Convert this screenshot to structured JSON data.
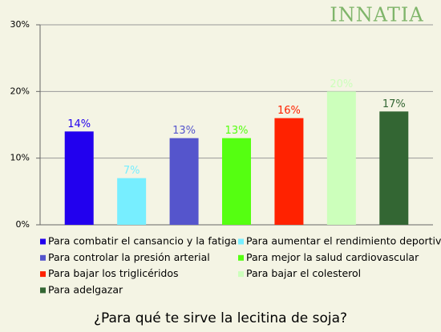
{
  "logo": "INNATIA",
  "chart_data": {
    "type": "bar",
    "title": "¿Para qué te sirve la lecitina de soja?",
    "categories": [
      "Para combatir el cansancio y la fatiga",
      "Para aumentar el rendimiento deportivo",
      "Para controlar la presión arterial",
      "Para mejor la salud cardiovascular",
      "Para bajar los triglicéridos",
      "Para bajar el colesterol",
      "Para adelgazar"
    ],
    "values": [
      14,
      7,
      13,
      13,
      16,
      20,
      17
    ],
    "value_labels": [
      "14%",
      "7%",
      "13%",
      "13%",
      "16%",
      "20%",
      "17%"
    ],
    "colors": [
      "#2200ee",
      "#77eeff",
      "#5555cc",
      "#55ff11",
      "#ff2200",
      "#ccffbb",
      "#336633"
    ],
    "ylim": [
      0,
      30
    ],
    "yticks": [
      {
        "value": 0,
        "label": "0%"
      },
      {
        "value": 10,
        "label": "10%"
      },
      {
        "value": 20,
        "label": "20%"
      },
      {
        "value": 30,
        "label": "30%"
      }
    ],
    "grid": true
  }
}
